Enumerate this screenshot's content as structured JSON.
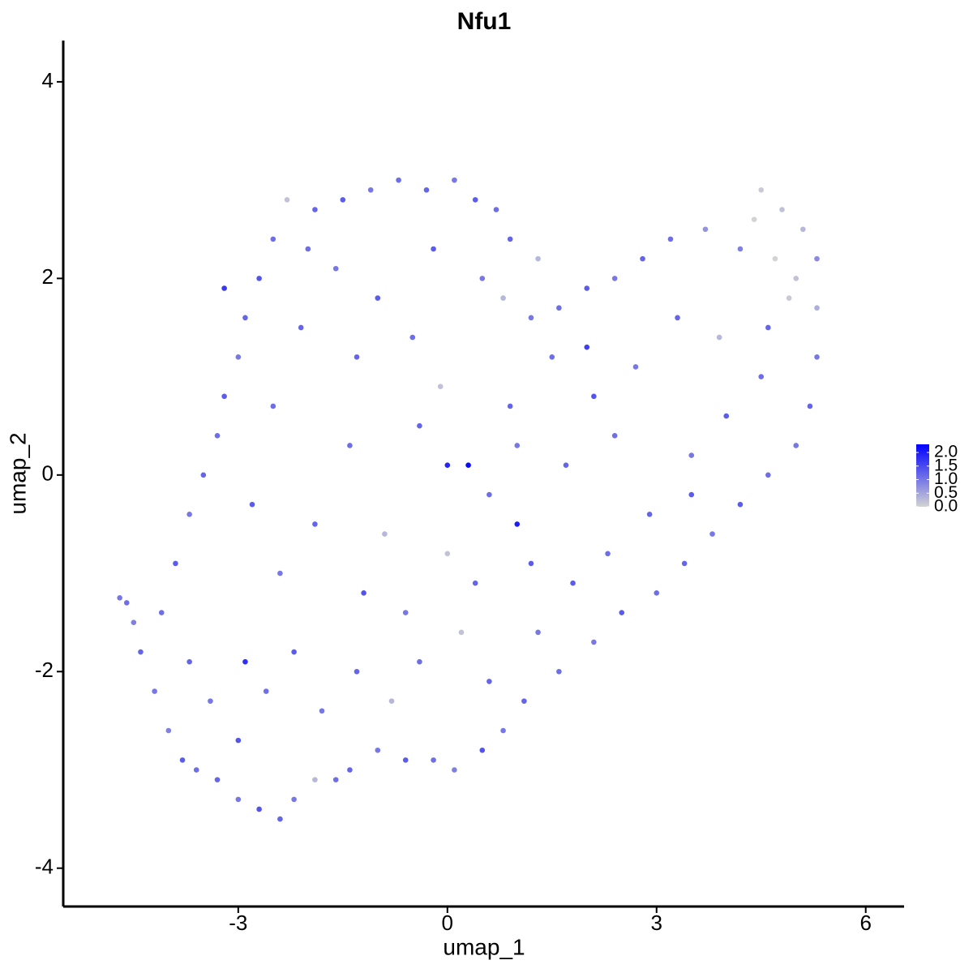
{
  "chart_data": {
    "type": "scatter",
    "title": "Nfu1",
    "x_label": "umap_1",
    "y_label": "umap_2",
    "xlim": [
      -5.51,
      6.55
    ],
    "ylim": [
      -4.39,
      4.42
    ],
    "xticks": [
      -3,
      0,
      3,
      6
    ],
    "yticks": [
      -4,
      -2,
      0,
      2,
      4
    ],
    "colors": [
      "#d3d3d3",
      "#0000ff"
    ],
    "color_range": [
      0,
      2.3
    ],
    "colorbar_ticks": [
      {
        "value": 0,
        "label": "0.0"
      },
      {
        "value": 0.5,
        "label": "0.5"
      },
      {
        "value": 1,
        "label": "1.0"
      },
      {
        "value": 1.5,
        "label": "1.5"
      },
      {
        "value": 2,
        "label": "2.0"
      }
    ],
    "x": [
      -4.7,
      -4.6,
      -4.5,
      -4.4,
      -4.2,
      -4.0,
      -3.8,
      -3.6,
      -3.3,
      -3.0,
      -2.7,
      -2.4,
      -2.2,
      -1.9,
      -1.6,
      -1.4,
      -1.0,
      -0.6,
      -0.2,
      0.1,
      0.5,
      0.8,
      1.1,
      1.6,
      2.1,
      2.5,
      3.0,
      3.4,
      3.8,
      4.2,
      4.6,
      5.0,
      5.2,
      5.3,
      5.3,
      5.3,
      5.1,
      4.8,
      4.5,
      4.4,
      4.7,
      5.0,
      4.9,
      4.2,
      3.7,
      3.2,
      2.8,
      2.4,
      2.0,
      1.6,
      1.2,
      0.8,
      0.9,
      0.7,
      0.4,
      0.1,
      -0.3,
      -0.7,
      -1.1,
      -1.5,
      -1.9,
      -2.3,
      -2.5,
      -2.7,
      -2.9,
      -3.0,
      -3.2,
      -3.3,
      -3.5,
      -3.7,
      -3.9,
      -4.1,
      -3.7,
      -3.4,
      -3.0,
      -2.6,
      -2.2,
      -1.8,
      -1.3,
      -0.8,
      -0.4,
      0.2,
      0.6,
      1.3,
      1.8,
      2.3,
      2.9,
      3.5,
      4.0,
      4.5,
      3.9,
      3.3,
      2.7,
      2.1,
      1.5,
      0.9,
      0.3,
      -0.1,
      -0.5,
      -1.0,
      -1.6,
      -2.1,
      -2.5,
      -2.8,
      -2.4,
      -1.9,
      -1.4,
      -0.9,
      -0.4,
      0.0,
      0.6,
      1.2,
      1.0,
      1.7,
      2.4,
      -1.2,
      -0.6,
      0.4,
      -2.0,
      -1.3,
      0.5,
      -0.2,
      1.3,
      4.6,
      3.5,
      0.0,
      1.0,
      -2.9,
      -3.2,
      2.0
    ],
    "y": [
      -1.25,
      -1.3,
      -1.5,
      -1.8,
      -2.2,
      -2.6,
      -2.9,
      -3.0,
      -3.1,
      -3.3,
      -3.4,
      -3.5,
      -3.3,
      -3.1,
      -3.1,
      -3.0,
      -2.8,
      -2.9,
      -2.9,
      -3.0,
      -2.8,
      -2.6,
      -2.3,
      -2.0,
      -1.7,
      -1.4,
      -1.2,
      -0.9,
      -0.6,
      -0.3,
      0.0,
      0.3,
      0.7,
      1.2,
      1.7,
      2.2,
      2.5,
      2.7,
      2.9,
      2.6,
      2.2,
      2.0,
      1.8,
      2.3,
      2.5,
      2.4,
      2.2,
      2.0,
      1.9,
      1.7,
      1.6,
      1.8,
      2.4,
      2.7,
      2.8,
      3.0,
      2.9,
      3.0,
      2.9,
      2.8,
      2.7,
      2.8,
      2.4,
      2.0,
      1.6,
      1.2,
      0.8,
      0.4,
      0.0,
      -0.4,
      -0.9,
      -1.4,
      -1.9,
      -2.3,
      -2.7,
      -2.2,
      -1.8,
      -2.4,
      -2.0,
      -2.3,
      -1.9,
      -1.6,
      -2.1,
      -1.6,
      -1.1,
      -0.8,
      -0.4,
      0.2,
      0.6,
      1.0,
      1.4,
      1.6,
      1.1,
      0.8,
      1.2,
      0.7,
      0.1,
      0.9,
      1.4,
      1.8,
      2.1,
      1.5,
      0.7,
      -0.3,
      -1.0,
      -0.5,
      0.3,
      -0.6,
      0.5,
      -0.8,
      -0.2,
      -0.9,
      0.3,
      0.1,
      0.4,
      -1.2,
      -1.4,
      -1.1,
      2.3,
      1.2,
      2.0,
      2.3,
      2.2,
      1.5,
      -0.2,
      0.1,
      -0.5,
      -1.9,
      1.9,
      1.3
    ],
    "values": [
      1.0,
      1.1,
      0.9,
      1.2,
      1.0,
      0.9,
      1.3,
      1.1,
      1.2,
      1.0,
      1.4,
      1.2,
      1.0,
      0.3,
      1.1,
      1.2,
      1.0,
      1.3,
      1.1,
      0.9,
      1.4,
      1.0,
      1.2,
      1.1,
      1.0,
      1.3,
      1.1,
      1.2,
      1.0,
      1.3,
      1.1,
      1.0,
      1.2,
      1.0,
      0.4,
      0.8,
      0.3,
      0.2,
      0.1,
      0.0,
      0.0,
      0.2,
      0.1,
      0.9,
      0.7,
      1.1,
      1.2,
      1.0,
      1.3,
      1.1,
      1.0,
      0.3,
      1.2,
      1.1,
      1.3,
      1.0,
      1.2,
      1.1,
      1.0,
      1.3,
      1.2,
      0.2,
      1.1,
      1.4,
      1.2,
      1.0,
      1.3,
      1.1,
      1.2,
      1.0,
      1.3,
      1.1,
      1.2,
      1.0,
      1.4,
      1.1,
      1.3,
      1.0,
      1.2,
      0.3,
      1.1,
      0.2,
      1.2,
      1.0,
      1.3,
      1.1,
      1.2,
      1.0,
      1.3,
      1.1,
      0.3,
      1.2,
      1.0,
      1.4,
      1.1,
      1.2,
      2.2,
      0.2,
      1.1,
      1.3,
      1.0,
      1.2,
      1.1,
      1.3,
      1.0,
      1.2,
      1.1,
      0.3,
      1.2,
      0.2,
      1.1,
      1.3,
      1.0,
      1.2,
      1.1,
      1.4,
      1.0,
      1.2,
      1.1,
      1.2,
      1.0,
      1.3,
      0.3,
      1.2,
      1.3,
      1.9,
      2.0,
      1.8,
      1.7,
      1.6
    ]
  }
}
